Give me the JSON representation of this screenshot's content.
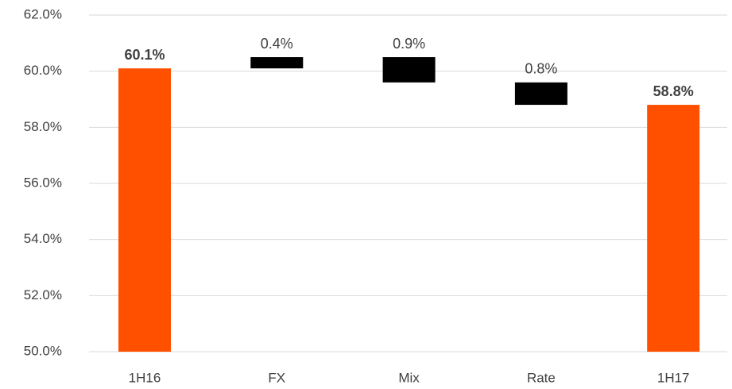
{
  "chart_data": {
    "type": "waterfall",
    "categories": [
      "1H16",
      "FX",
      "Mix",
      "Rate",
      "1H17"
    ],
    "values": [
      60.1,
      0.4,
      -0.9,
      -0.8,
      58.8
    ],
    "value_labels": [
      "60.1%",
      "0.4%",
      "0.9%",
      "0.8%",
      "58.8%"
    ],
    "colors": [
      "#ff5000",
      "#000000",
      "#000000",
      "#000000",
      "#ff5000"
    ],
    "ylim": [
      50,
      62
    ],
    "yticks": [
      {
        "value": 50,
        "label": "50.0%"
      },
      {
        "value": 52,
        "label": "52.0%"
      },
      {
        "value": 54,
        "label": "54.0%"
      },
      {
        "value": 56,
        "label": "56.0%"
      },
      {
        "value": 58,
        "label": "58.0%"
      },
      {
        "value": 60,
        "label": "60.0%"
      },
      {
        "value": 62,
        "label": "62.0%"
      }
    ],
    "grid": true
  }
}
